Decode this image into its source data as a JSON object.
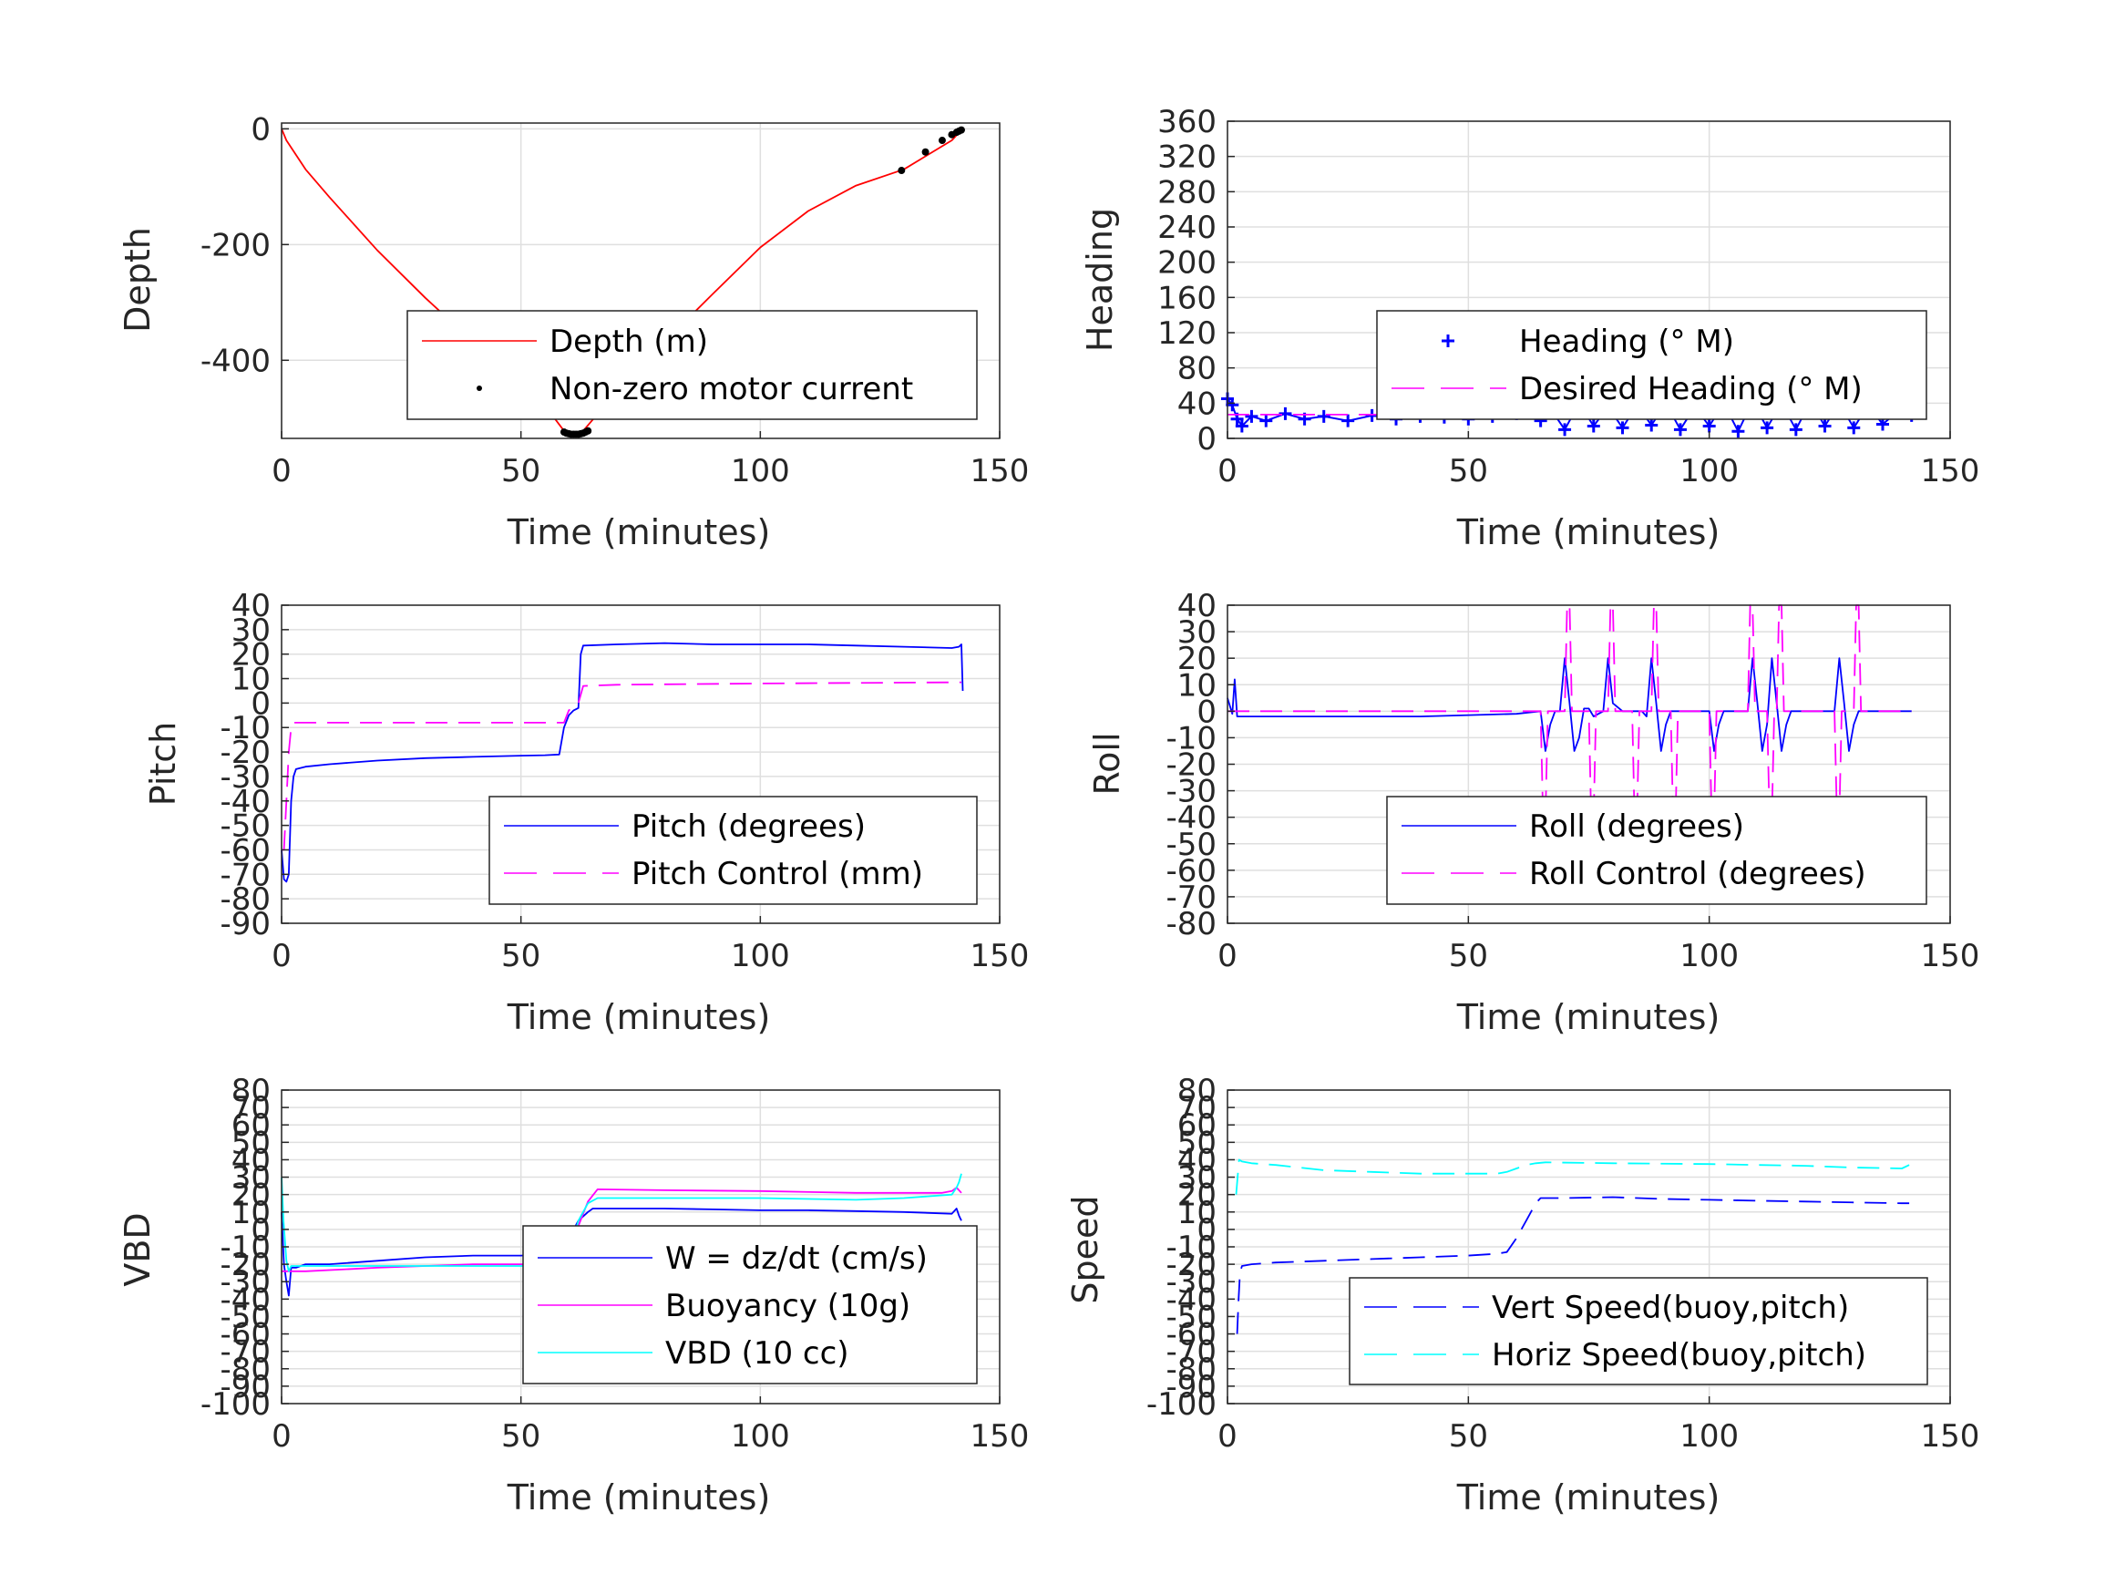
{
  "figure": {
    "background": "#ffffff"
  },
  "chart_data": [
    {
      "id": "depth",
      "type": "line",
      "xlabel": "Time (minutes)",
      "ylabel": "Depth",
      "xlim": [
        0,
        150
      ],
      "ylim": [
        -535,
        10
      ],
      "xticks": [
        0,
        50,
        100,
        150
      ],
      "yticks": [
        -400,
        -200,
        0
      ],
      "grid": true,
      "legend_position": "bottom-right",
      "series": [
        {
          "name": "Depth (m)",
          "style": "line",
          "color": "#ff0000",
          "x": [
            0,
            1,
            3,
            5,
            10,
            20,
            30,
            40,
            50,
            55,
            59,
            61,
            63,
            66,
            70,
            80,
            90,
            100,
            110,
            120,
            130,
            135,
            140,
            142
          ],
          "y": [
            0,
            -20,
            -45,
            -70,
            -118,
            -210,
            -292,
            -368,
            -440,
            -478,
            -522,
            -528,
            -522,
            -493,
            -455,
            -368,
            -286,
            -205,
            -142,
            -98,
            -70,
            -45,
            -20,
            -2
          ]
        },
        {
          "name": "Non-zero motor current",
          "style": "dots",
          "color": "#000000",
          "x": [
            59,
            59.5,
            60,
            60.5,
            61,
            61.5,
            62,
            62.5,
            63,
            63.5,
            64,
            129.5,
            134.5,
            138,
            140,
            141,
            141.5,
            142
          ],
          "y": [
            -524,
            -526,
            -527,
            -528,
            -528,
            -528,
            -528,
            -527,
            -526,
            -524,
            -522,
            -72,
            -40,
            -20,
            -10,
            -6,
            -4,
            -2
          ]
        }
      ]
    },
    {
      "id": "heading",
      "type": "line",
      "xlabel": "Time (minutes)",
      "ylabel": "Heading",
      "xlim": [
        0,
        150
      ],
      "ylim": [
        0,
        360
      ],
      "xticks": [
        0,
        50,
        100,
        150
      ],
      "yticks": [
        0,
        40,
        80,
        120,
        160,
        200,
        240,
        280,
        320,
        360
      ],
      "grid": true,
      "legend_position": "bottom-right",
      "series": [
        {
          "name": "Heading (° M)",
          "style": "plus",
          "color": "#0000ff",
          "x": [
            0,
            1,
            2,
            3,
            5,
            8,
            12,
            16,
            20,
            25,
            30,
            35,
            40,
            45,
            50,
            55,
            60,
            63,
            65,
            67,
            70,
            73,
            76,
            79,
            82,
            85,
            88,
            91,
            94,
            97,
            100,
            103,
            106,
            109,
            112,
            115,
            118,
            121,
            124,
            127,
            130,
            133,
            136,
            139,
            142
          ],
          "y": [
            45,
            38,
            22,
            14,
            25,
            20,
            28,
            22,
            25,
            20,
            26,
            22,
            25,
            24,
            22,
            25,
            28,
            40,
            20,
            34,
            10,
            40,
            14,
            36,
            12,
            38,
            15,
            40,
            10,
            36,
            14,
            40,
            8,
            42,
            12,
            40,
            10,
            42,
            14,
            40,
            12,
            38,
            16,
            30,
            26
          ]
        },
        {
          "name": "Desired Heading (° M)",
          "style": "dashed",
          "color": "#ff00ff",
          "x": [
            0,
            142
          ],
          "y": [
            27,
            27
          ]
        }
      ]
    },
    {
      "id": "pitch",
      "type": "line",
      "xlabel": "Time (minutes)",
      "ylabel": "Pitch",
      "xlim": [
        0,
        150
      ],
      "ylim": [
        -90,
        40
      ],
      "xticks": [
        0,
        50,
        100,
        150
      ],
      "yticks": [
        -90,
        -80,
        -70,
        -60,
        -50,
        -40,
        -30,
        -20,
        -10,
        0,
        10,
        20,
        30,
        40
      ],
      "grid": true,
      "legend_position": "bottom-right",
      "series": [
        {
          "name": "Pitch (degrees)",
          "style": "line",
          "color": "#0000ff",
          "x": [
            0,
            0.5,
            1,
            1.5,
            2,
            2.5,
            3,
            5,
            10,
            20,
            30,
            40,
            50,
            55,
            58,
            59,
            60,
            61,
            62,
            62.5,
            63,
            70,
            80,
            90,
            100,
            110,
            120,
            130,
            140,
            141.5,
            142,
            142.3
          ],
          "y": [
            -60,
            -72,
            -73,
            -70,
            -40,
            -30,
            -27,
            -26,
            -25,
            -23.5,
            -22.5,
            -22,
            -21.5,
            -21.3,
            -21,
            -10,
            -5,
            -3,
            -2,
            20,
            23.5,
            24,
            24.5,
            24,
            24,
            24,
            23.5,
            23,
            22.5,
            23,
            24,
            5
          ]
        },
        {
          "name": "Pitch Control (mm)",
          "style": "dashed",
          "color": "#ff00ff",
          "x": [
            0,
            0.5,
            1,
            1.5,
            2,
            2.5,
            3,
            30,
            59,
            60,
            62,
            63,
            70,
            100,
            142
          ],
          "y": [
            -60,
            -60,
            -40,
            -20,
            -10,
            -8,
            -8,
            -8,
            -8,
            -3,
            0,
            7,
            7.5,
            8,
            8.5
          ]
        }
      ]
    },
    {
      "id": "roll",
      "type": "line",
      "xlabel": "Time (minutes)",
      "ylabel": "Roll",
      "xlim": [
        0,
        150
      ],
      "ylim": [
        -80,
        40
      ],
      "xticks": [
        0,
        50,
        100,
        150
      ],
      "yticks": [
        -80,
        -70,
        -60,
        -50,
        -40,
        -30,
        -20,
        -10,
        0,
        10,
        20,
        30,
        40
      ],
      "grid": true,
      "legend_position": "bottom-right",
      "series": [
        {
          "name": "Roll (degrees)",
          "style": "line",
          "color": "#0000ff",
          "x": [
            0,
            1,
            1.5,
            2,
            5,
            20,
            40,
            60,
            65,
            66,
            67,
            68,
            69,
            70,
            71,
            72,
            73,
            74,
            75,
            76,
            78,
            79,
            80,
            82,
            84,
            86,
            87,
            88,
            89,
            90,
            91,
            92,
            93,
            94,
            96,
            100,
            101,
            102,
            103,
            104,
            106,
            108,
            109,
            110,
            111,
            112,
            113,
            114,
            115,
            116,
            117,
            118,
            120,
            126,
            127,
            128,
            129,
            130,
            131,
            132,
            134,
            142
          ],
          "y": [
            5,
            -1,
            12,
            -2,
            -2,
            -2,
            -2,
            -1,
            0,
            -15,
            -5,
            0,
            0,
            20,
            3,
            -15,
            -10,
            1,
            1,
            -2,
            0,
            20,
            3,
            0,
            0,
            0,
            -2,
            20,
            3,
            -15,
            -5,
            0,
            0,
            0,
            0,
            0,
            -15,
            -5,
            0,
            0,
            0,
            0,
            20,
            3,
            -15,
            -5,
            20,
            3,
            -15,
            -5,
            0,
            0,
            0,
            0,
            20,
            3,
            -15,
            -5,
            0,
            0,
            0,
            0
          ]
        },
        {
          "name": "Roll Control (degrees)",
          "style": "dashed",
          "color": "#ff00ff",
          "x": [
            0,
            20,
            40,
            60,
            65,
            65.5,
            66,
            66.5,
            70,
            70.5,
            71,
            71.5,
            75,
            75.5,
            76,
            76.5,
            79,
            79.5,
            80,
            80.5,
            84,
            84.5,
            85,
            85.5,
            88,
            88.5,
            89,
            89.5,
            92,
            92.5,
            93,
            93.5,
            100,
            100.5,
            101,
            101.5,
            108,
            108.5,
            109,
            109.5,
            112,
            112.5,
            113,
            113.5,
            114,
            114.5,
            115,
            115.5,
            126,
            126.5,
            127,
            127.5,
            130,
            130.5,
            131,
            131.5,
            142
          ],
          "y": [
            0,
            0,
            0,
            0,
            0,
            -40,
            -40,
            0,
            0,
            40,
            40,
            0,
            0,
            -40,
            -40,
            0,
            0,
            40,
            40,
            0,
            0,
            -40,
            -40,
            0,
            0,
            40,
            40,
            0,
            0,
            -40,
            -40,
            0,
            0,
            -40,
            -40,
            0,
            0,
            40,
            40,
            0,
            0,
            -40,
            -40,
            0,
            0,
            40,
            40,
            0,
            0,
            -40,
            -40,
            0,
            0,
            40,
            40,
            0,
            0
          ]
        }
      ]
    },
    {
      "id": "vbd",
      "type": "line",
      "xlabel": "Time (minutes)",
      "ylabel": "VBD",
      "xlim": [
        0,
        150
      ],
      "ylim": [
        -100,
        80
      ],
      "xticks": [
        0,
        50,
        100,
        150
      ],
      "yticks": [
        -100,
        -90,
        -80,
        -70,
        -60,
        -50,
        -40,
        -30,
        -20,
        -10,
        0,
        10,
        20,
        30,
        40,
        50,
        60,
        70,
        80
      ],
      "ytick_labels": [
        "-100",
        "-90",
        "-80",
        "-70",
        "-60",
        "-50",
        "-40",
        "-30",
        "-20",
        "-10",
        "0",
        "10",
        "20",
        "30",
        "40",
        "50",
        "60",
        "70",
        "80"
      ],
      "grid": true,
      "legend_position": "bottom-right",
      "series": [
        {
          "name": "W = dz/dt (cm/s)",
          "style": "line",
          "color": "#0000ff",
          "x": [
            0,
            0.5,
            1,
            1.5,
            2,
            3,
            5,
            10,
            20,
            30,
            40,
            50,
            58,
            59,
            61,
            62,
            64,
            65,
            70,
            80,
            90,
            100,
            110,
            120,
            130,
            140,
            141,
            141.5,
            142
          ],
          "y": [
            10,
            -20,
            -30,
            -38,
            -22,
            -22,
            -20,
            -20,
            -18,
            -16,
            -15,
            -15,
            -14,
            -10,
            0,
            5,
            10,
            12,
            12,
            12,
            11.5,
            11,
            11,
            10.5,
            10,
            9,
            12,
            8,
            5
          ]
        },
        {
          "name": "Buoyancy (10g)",
          "style": "line",
          "color": "#ff00ff",
          "x": [
            0,
            2,
            5,
            20,
            40,
            58,
            60,
            62,
            64,
            66,
            80,
            100,
            120,
            130,
            138,
            140,
            141,
            142
          ],
          "y": [
            -24,
            -24,
            -24,
            -22,
            -20,
            -20,
            -14,
            2,
            16,
            23,
            22.5,
            22,
            21,
            21,
            21,
            22,
            24,
            21
          ]
        },
        {
          "name": "VBD (10 cc)",
          "style": "line",
          "color": "#00ffff",
          "x": [
            0,
            0.4,
            1,
            1.5,
            2,
            3,
            10,
            30,
            58,
            60,
            61,
            62,
            64,
            66,
            80,
            100,
            120,
            130,
            135,
            140,
            141,
            141.5,
            142
          ],
          "y": [
            30,
            5,
            -18,
            -24,
            -21,
            -21,
            -21,
            -21,
            -21,
            -15,
            -5,
            5,
            15,
            18,
            18,
            18,
            17,
            18,
            19,
            20,
            24,
            27,
            32
          ]
        }
      ]
    },
    {
      "id": "speed",
      "type": "line",
      "xlabel": "Time (minutes)",
      "ylabel": "Speed",
      "xlim": [
        0,
        150
      ],
      "ylim": [
        -100,
        80
      ],
      "xticks": [
        0,
        50,
        100,
        150
      ],
      "yticks": [
        -100,
        -90,
        -80,
        -70,
        -60,
        -50,
        -40,
        -30,
        -20,
        -10,
        0,
        10,
        20,
        30,
        40,
        50,
        60,
        70,
        80
      ],
      "ytick_labels": [
        "-100",
        "-90",
        "-80",
        "-70",
        "-60",
        "-50",
        "-40",
        "-30",
        "-20",
        "-10",
        "0",
        "10",
        "20",
        "30",
        "40",
        "50",
        "60",
        "70",
        "80"
      ],
      "grid": true,
      "legend_position": "bottom-right",
      "series": [
        {
          "name": "Vert Speed(buoy,pitch)",
          "style": "dashed",
          "color": "#0000ff",
          "x": [
            2,
            2.3,
            2.6,
            3,
            5,
            10,
            20,
            30,
            40,
            50,
            56,
            58,
            60,
            62,
            64,
            65,
            70,
            80,
            90,
            100,
            110,
            120,
            130,
            140,
            141.5
          ],
          "y": [
            -60,
            -40,
            -25,
            -21,
            -20,
            -19,
            -18,
            -17,
            -16,
            -15,
            -14,
            -13,
            -5,
            5,
            15,
            18,
            18,
            18.5,
            17.5,
            17,
            16.5,
            16,
            15.5,
            15,
            15
          ]
        },
        {
          "name": "Horiz Speed(buoy,pitch)",
          "style": "dashed",
          "color": "#00ffff",
          "x": [
            1.8,
            2.1,
            2.4,
            3,
            5,
            10,
            20,
            30,
            40,
            50,
            56,
            58,
            60,
            62,
            64,
            66,
            80,
            100,
            120,
            130,
            140,
            141.5
          ],
          "y": [
            20,
            30,
            40,
            39,
            38,
            37,
            34,
            33,
            32,
            32,
            32,
            33,
            35,
            37,
            38,
            38.5,
            38,
            37.5,
            36.5,
            35.5,
            35,
            37
          ]
        }
      ]
    }
  ]
}
